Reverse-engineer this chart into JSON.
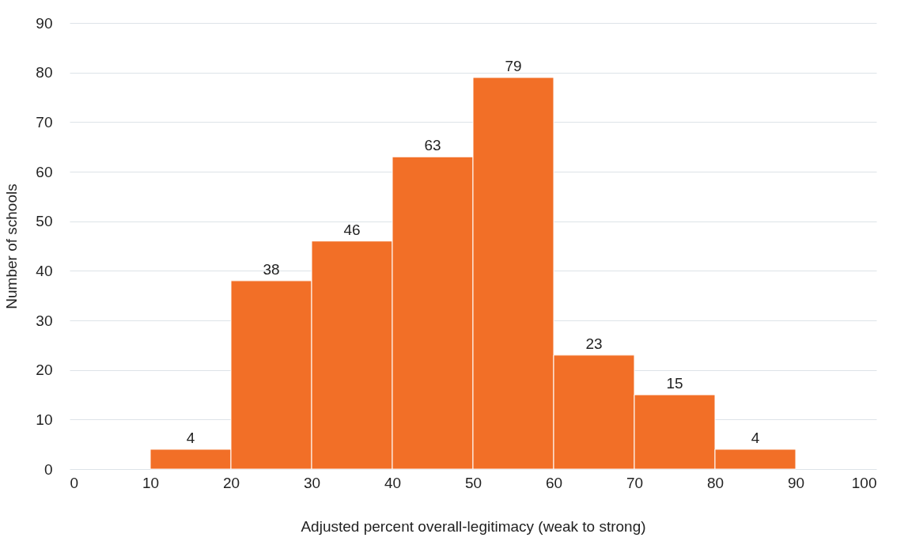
{
  "chart_data": {
    "type": "histogram",
    "xlabel": "Adjusted percent overall-legitimacy (weak to strong)",
    "ylabel": "Number of schools",
    "bins": [
      10,
      20,
      30,
      40,
      50,
      60,
      70,
      80,
      90
    ],
    "values": [
      4,
      38,
      46,
      63,
      79,
      23,
      15,
      4
    ],
    "color": "#f26f27",
    "xlim": [
      0,
      100
    ],
    "xticks": [
      0,
      10,
      20,
      30,
      40,
      50,
      60,
      70,
      80,
      90,
      100
    ],
    "ylim": [
      0,
      90
    ],
    "yticks": [
      0,
      10,
      20,
      30,
      40,
      50,
      60,
      70,
      80,
      90
    ],
    "grid": "y",
    "data_labels": true
  }
}
